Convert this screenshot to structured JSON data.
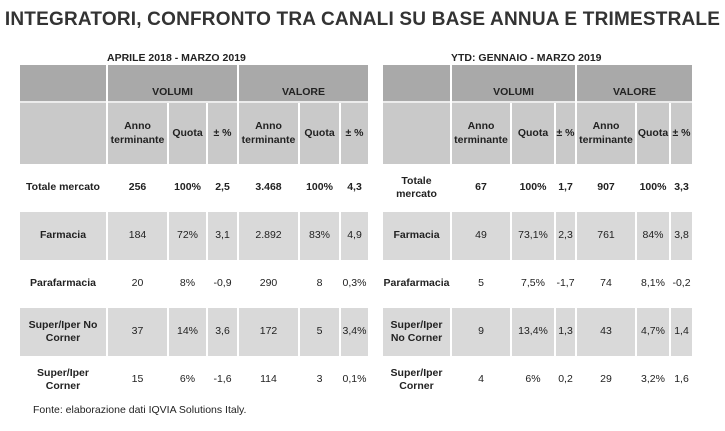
{
  "title": "INTEGRATORI, CONFRONTO TRA CANALI SU BASE ANNUA E TRIMESTRALE",
  "tables": [
    {
      "period": "APRILE 2018 - MARZO 2019",
      "groups": [
        "VOLUMI",
        "VALORE"
      ],
      "columns": [
        "Anno terminante",
        "Quota",
        "± %",
        "Anno terminante",
        "Quota",
        "± %"
      ],
      "rows": [
        {
          "label": "Totale mercato",
          "cells": [
            "256",
            "100%",
            "2,5",
            "3.468",
            "100%",
            "4,3"
          ]
        },
        {
          "label": "Farmacia",
          "cells": [
            "184",
            "72%",
            "3,1",
            "2.892",
            "83%",
            "4,9"
          ]
        },
        {
          "label": "Parafarmacia",
          "cells": [
            "20",
            "8%",
            "-0,9",
            "290",
            "8",
            "0,3%"
          ]
        },
        {
          "label": "Super/Iper No Corner",
          "cells": [
            "37",
            "14%",
            "3,6",
            "172",
            "5",
            "3,4%"
          ]
        },
        {
          "label": "Super/Iper Corner",
          "cells": [
            "15",
            "6%",
            "-1,6",
            "114",
            "3",
            "0,1%"
          ]
        }
      ]
    },
    {
      "period": "YTD: GENNAIO - MARZO 2019",
      "groups": [
        "VOLUMI",
        "VALORE"
      ],
      "columns": [
        "Anno terminante",
        "Quota",
        "± %",
        "Anno terminante",
        "Quota",
        "± %"
      ],
      "rows": [
        {
          "label": "Totale mercato",
          "cells": [
            "67",
            "100%",
            "1,7",
            "907",
            "100%",
            "3,3"
          ]
        },
        {
          "label": "Farmacia",
          "cells": [
            "49",
            "73,1%",
            "2,3",
            "761",
            "84%",
            "3,8"
          ]
        },
        {
          "label": "Parafarmacia",
          "cells": [
            "5",
            "7,5%",
            "-1,7",
            "74",
            "8,1%",
            "-0,2"
          ]
        },
        {
          "label": "Super/Iper No Corner",
          "cells": [
            "9",
            "13,4%",
            "1,3",
            "43",
            "4,7%",
            "1,4"
          ]
        },
        {
          "label": "Super/Iper Corner",
          "cells": [
            "4",
            "6%",
            "0,2",
            "29",
            "3,2%",
            "1,6"
          ]
        }
      ]
    }
  ],
  "footer": "Fonte: elaborazione dati IQVIA Solutions Italy."
}
